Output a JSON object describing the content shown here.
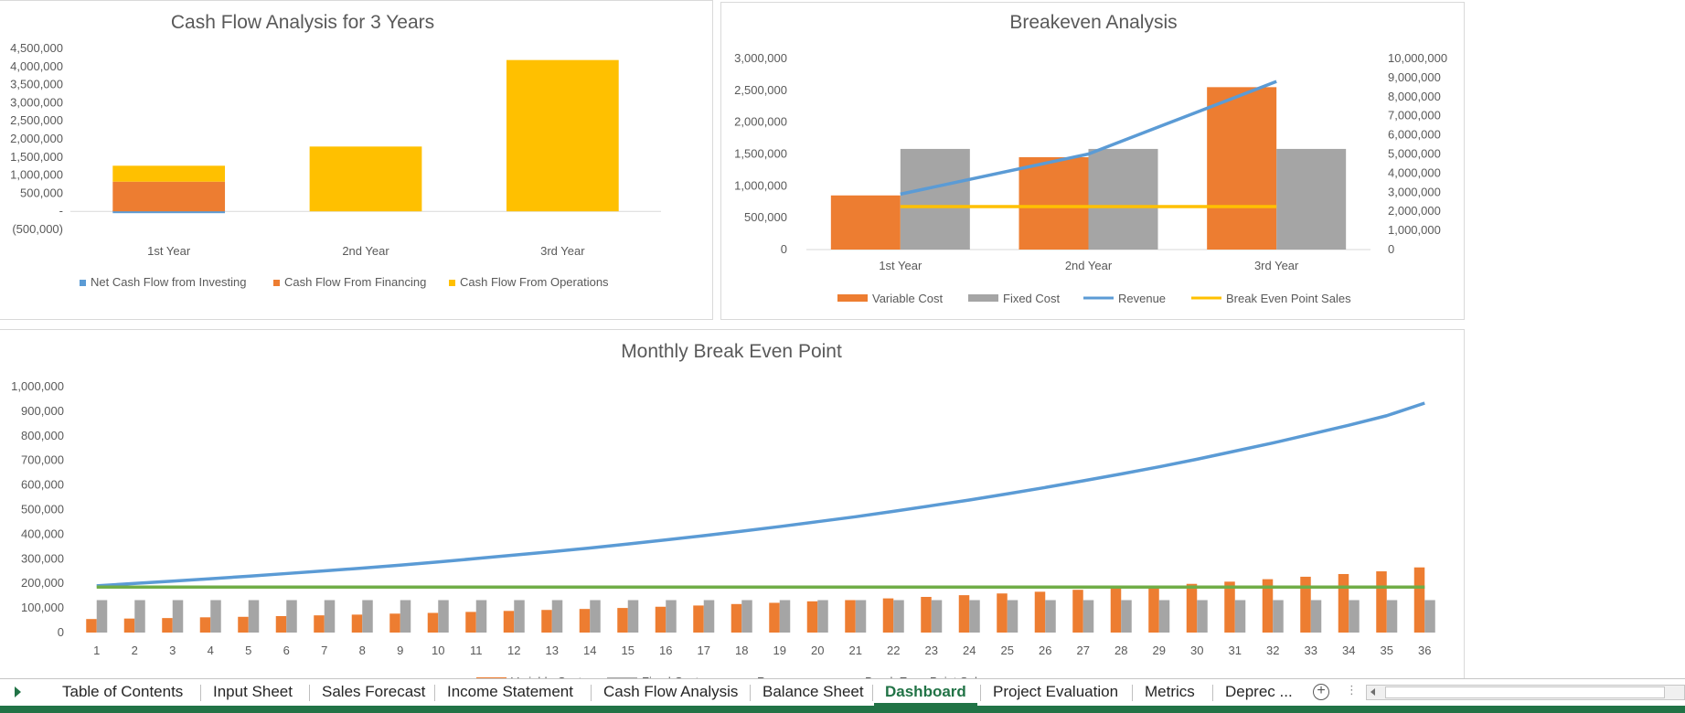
{
  "colors": {
    "blue": "#5b9bd5",
    "orange": "#ed7d31",
    "gray": "#a5a5a5",
    "yellow": "#ffc000",
    "green": "#70ad47",
    "excel_green": "#217346",
    "text": "#595959",
    "axis": "#d9d9d9"
  },
  "chart_data": [
    {
      "id": "cashflow",
      "type": "bar",
      "stacked": true,
      "title": "Cash Flow Analysis for 3 Years",
      "categories": [
        "1st Year",
        "2nd Year",
        "3rd Year"
      ],
      "series": [
        {
          "name": "Net Cash Flow from Investing",
          "values": [
            -50000,
            0,
            0
          ],
          "color": "#5b9bd5"
        },
        {
          "name": "Cash Flow From Financing",
          "values": [
            820000,
            0,
            0
          ],
          "color": "#ed7d31"
        },
        {
          "name": "Cash Flow From Operations",
          "values": [
            440000,
            1790000,
            4180000
          ],
          "color": "#ffc000"
        }
      ],
      "ylim": [
        -500000,
        4500000
      ],
      "ytick_labels": [
        "4,500,000",
        "4,000,000",
        "3,500,000",
        "3,000,000",
        "2,500,000",
        "2,000,000",
        "1,500,000",
        "1,000,000",
        "500,000",
        "-",
        "(500,000)"
      ],
      "legend_position": "bottom",
      "grid": false
    },
    {
      "id": "breakeven",
      "type": "bar",
      "title": "Breakeven Analysis",
      "categories": [
        "1st Year",
        "2nd Year",
        "3rd Year"
      ],
      "series": [
        {
          "name": "Variable Cost",
          "type": "bar",
          "axis": "left",
          "values": [
            850000,
            1450000,
            2550000
          ],
          "color": "#ed7d31"
        },
        {
          "name": "Fixed Cost",
          "type": "bar",
          "axis": "left",
          "values": [
            1580000,
            1580000,
            1580000
          ],
          "color": "#a5a5a5"
        },
        {
          "name": "Revenue",
          "type": "line",
          "axis": "right",
          "values": [
            2900000,
            5000000,
            8800000
          ],
          "color": "#5b9bd5"
        },
        {
          "name": "Break Even Point Sales",
          "type": "line",
          "axis": "right",
          "values": [
            2250000,
            2250000,
            2250000
          ],
          "color": "#ffc000"
        }
      ],
      "ylim": [
        0,
        3000000
      ],
      "ylim_right": [
        0,
        10000000
      ],
      "ytick_labels": [
        "3,000,000",
        "2,500,000",
        "2,000,000",
        "1,500,000",
        "1,000,000",
        "500,000",
        "0"
      ],
      "ytick_labels_right": [
        "10,000,000",
        "9,000,000",
        "8,000,000",
        "7,000,000",
        "6,000,000",
        "5,000,000",
        "4,000,000",
        "3,000,000",
        "2,000,000",
        "1,000,000",
        "0"
      ],
      "legend_position": "bottom",
      "grid": false
    },
    {
      "id": "monthly",
      "type": "bar",
      "title": "Monthly Break Even Point",
      "categories": [
        "1",
        "2",
        "3",
        "4",
        "5",
        "6",
        "7",
        "8",
        "9",
        "10",
        "11",
        "12",
        "13",
        "14",
        "15",
        "16",
        "17",
        "18",
        "19",
        "20",
        "21",
        "22",
        "23",
        "24",
        "25",
        "26",
        "27",
        "28",
        "29",
        "30",
        "31",
        "32",
        "33",
        "34",
        "35",
        "36"
      ],
      "series": [
        {
          "name": "Variable Cost",
          "type": "bar",
          "values": [
            55000,
            57000,
            59000,
            62000,
            64000,
            67000,
            70000,
            73000,
            77000,
            80000,
            84000,
            88000,
            92000,
            96000,
            100000,
            105000,
            110000,
            116000,
            121000,
            127000,
            132000,
            139000,
            145000,
            152000,
            159000,
            166000,
            174000,
            181000,
            190000,
            198000,
            207000,
            217000,
            227000,
            238000,
            249000,
            265000
          ],
          "color": "#ed7d31"
        },
        {
          "name": "Fixed Cost",
          "type": "bar",
          "values": [
            132000,
            132000,
            132000,
            132000,
            132000,
            132000,
            132000,
            132000,
            132000,
            132000,
            132000,
            132000,
            132000,
            132000,
            132000,
            132000,
            132000,
            132000,
            132000,
            132000,
            132000,
            132000,
            132000,
            132000,
            132000,
            132000,
            132000,
            132000,
            132000,
            132000,
            132000,
            132000,
            132000,
            132000,
            132000,
            132000
          ],
          "color": "#a5a5a5"
        },
        {
          "name": "Revenue",
          "type": "line",
          "values": [
            190000,
            200000,
            209000,
            219000,
            229000,
            240000,
            251000,
            262000,
            274000,
            287000,
            301000,
            315000,
            329000,
            344000,
            360000,
            377000,
            394000,
            412000,
            431000,
            451000,
            471000,
            493000,
            516000,
            539000,
            564000,
            590000,
            617000,
            645000,
            674000,
            705000,
            738000,
            771000,
            807000,
            843000,
            882000,
            933000
          ],
          "color": "#5b9bd5"
        },
        {
          "name": "Break Even Point Sales",
          "type": "line",
          "values": [
            185000,
            185000,
            185000,
            185000,
            185000,
            185000,
            185000,
            185000,
            185000,
            185000,
            185000,
            185000,
            185000,
            185000,
            185000,
            185000,
            185000,
            185000,
            185000,
            185000,
            185000,
            185000,
            185000,
            185000,
            185000,
            185000,
            185000,
            185000,
            185000,
            185000,
            185000,
            185000,
            185000,
            185000,
            185000,
            185000
          ],
          "color": "#70ad47"
        }
      ],
      "ylim": [
        0,
        1000000
      ],
      "ytick_labels": [
        "1,000,000",
        "900,000",
        "800,000",
        "700,000",
        "600,000",
        "500,000",
        "400,000",
        "300,000",
        "200,000",
        "100,000",
        "0"
      ],
      "legend_position": "bottom",
      "grid": false
    }
  ],
  "tabs": {
    "items": [
      "Table of Contents",
      "Input Sheet",
      "Sales Forecast",
      "Income Statement",
      "Cash Flow Analysis",
      "Balance Sheet",
      "Dashboard",
      "Project Evaluation",
      "Metrics",
      "Deprec ..."
    ],
    "active": "Dashboard",
    "add_symbol": "+",
    "dots": "⋮"
  }
}
